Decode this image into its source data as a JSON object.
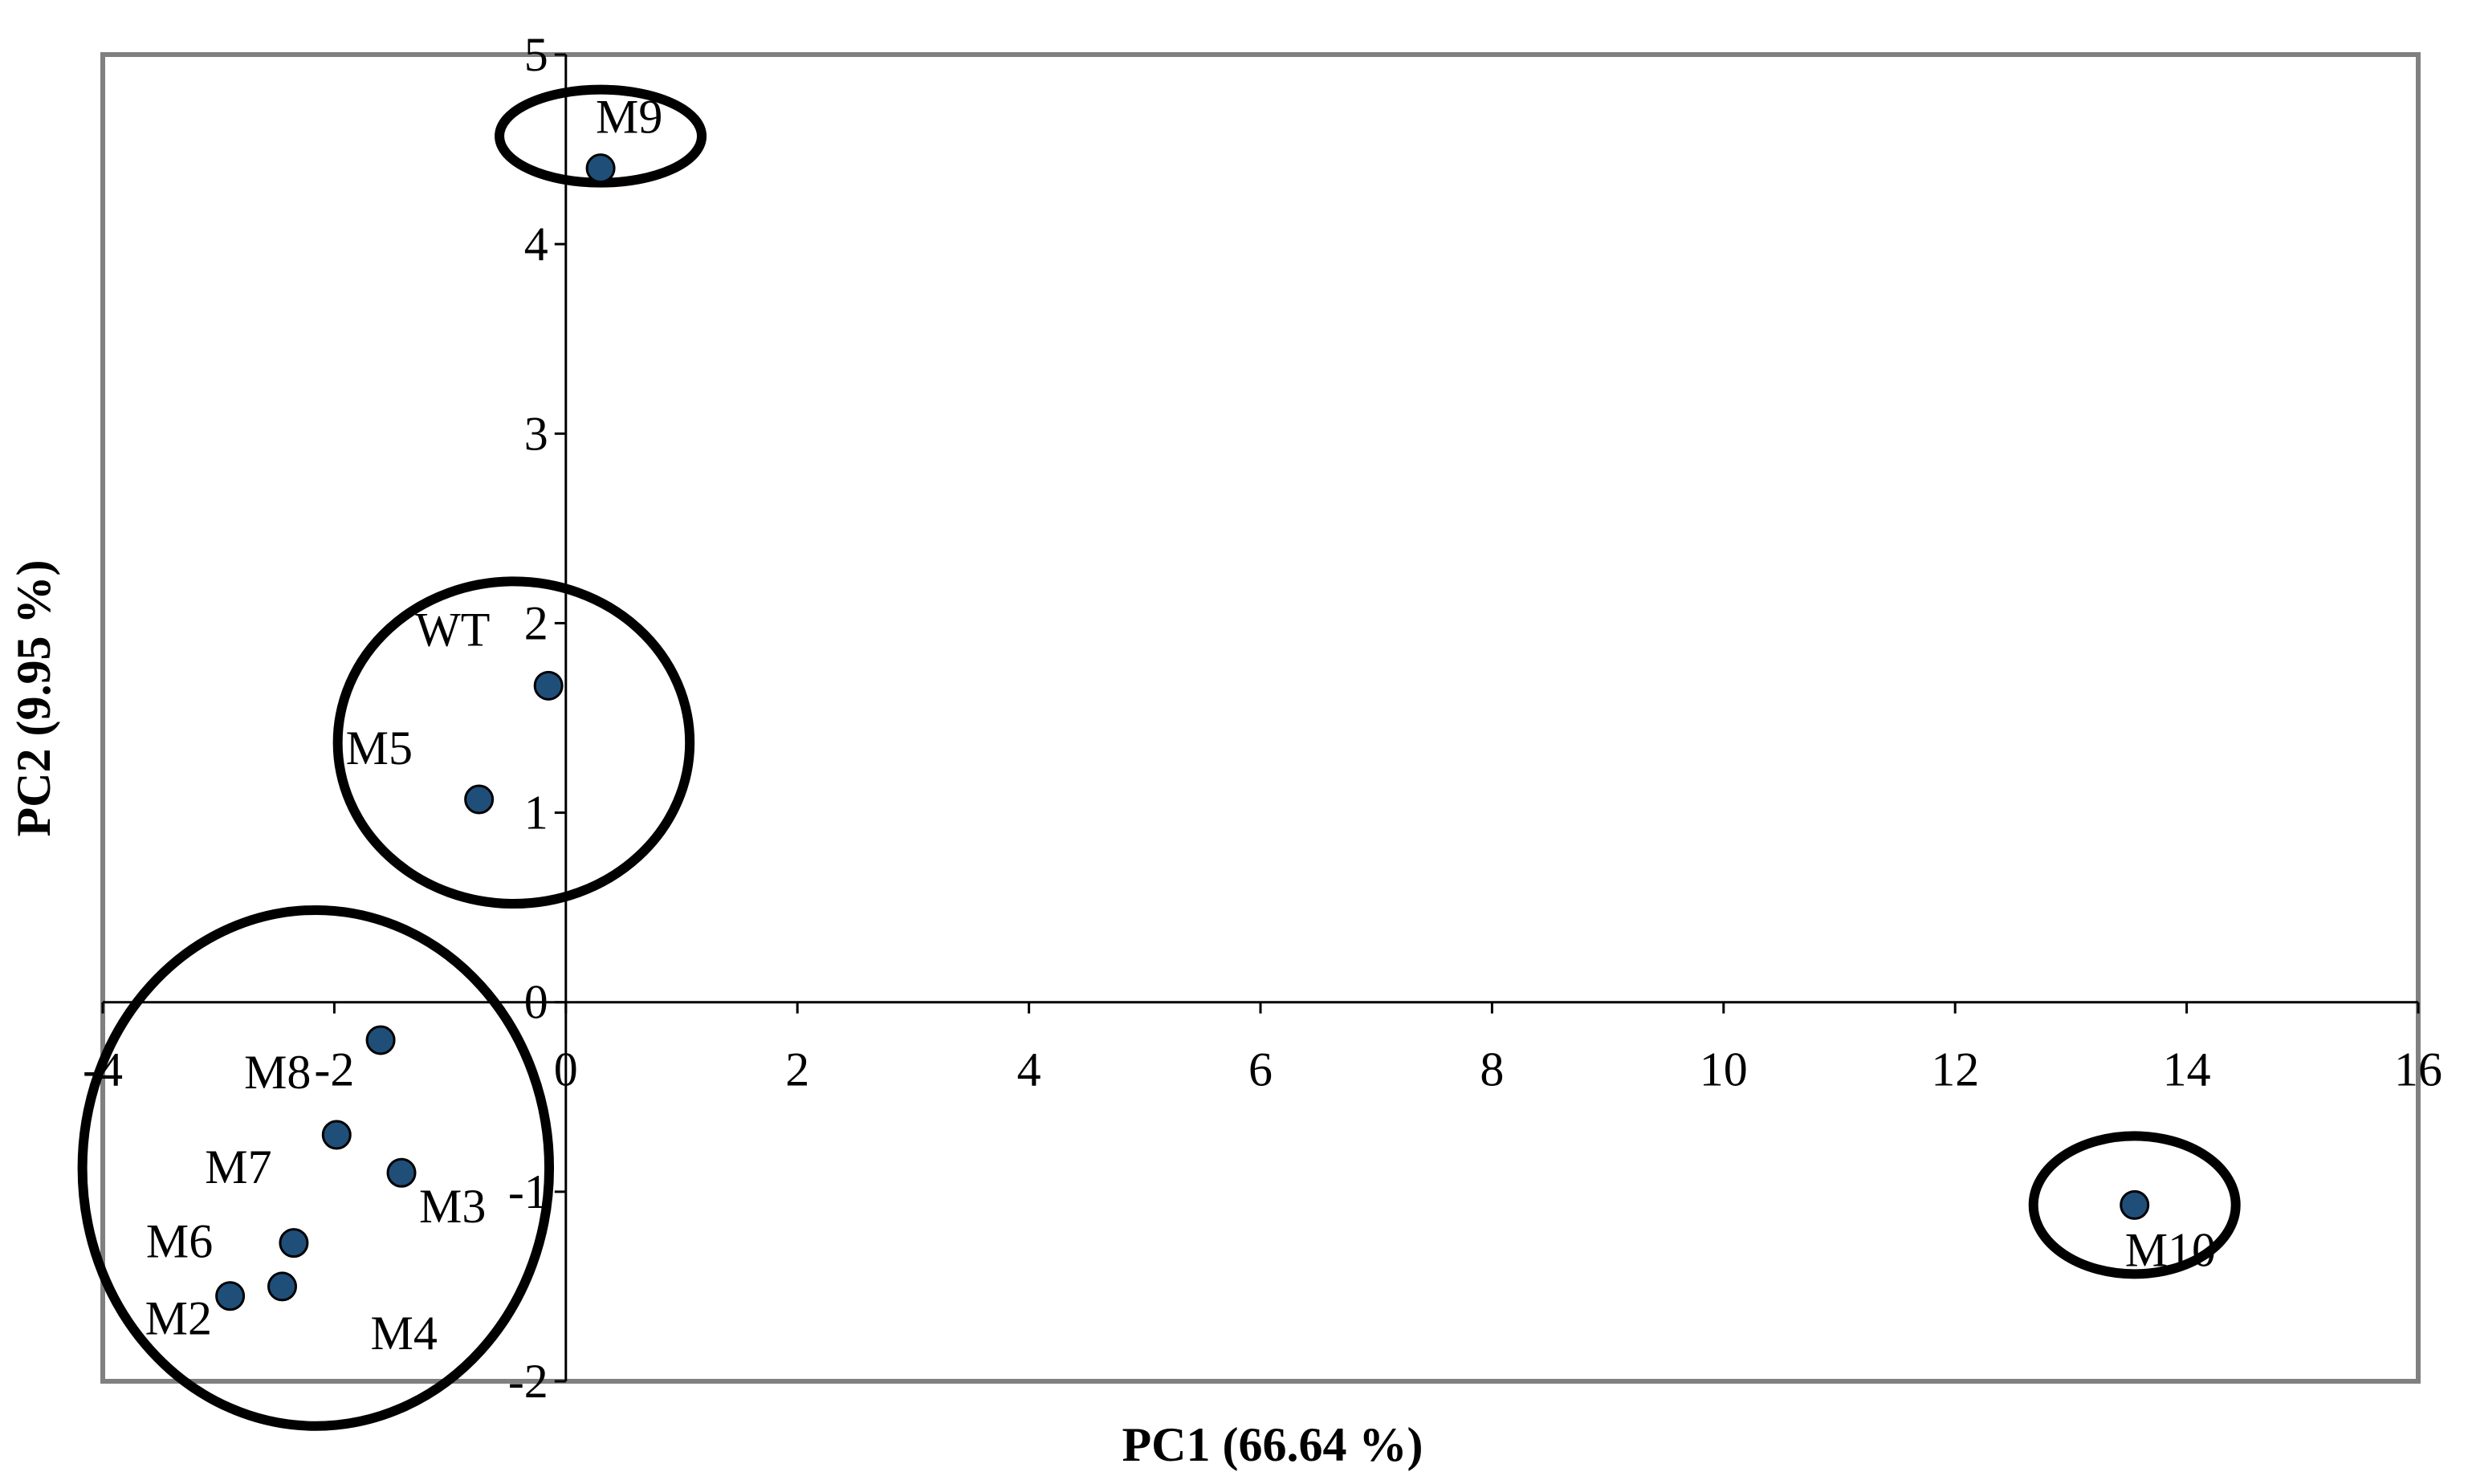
{
  "chart_data": {
    "type": "scatter",
    "title": "",
    "xlabel": "PC1 (66.64 %)",
    "ylabel": "PC2 (9.95 %)",
    "xlim": [
      -4,
      16
    ],
    "ylim": [
      -2,
      5
    ],
    "xticks": [
      -4,
      -2,
      0,
      2,
      4,
      6,
      8,
      10,
      12,
      14,
      16
    ],
    "yticks": [
      -2,
      -1,
      0,
      1,
      2,
      3,
      4,
      5
    ],
    "grid": false,
    "legend": "none",
    "marker_color": "#1f4e79",
    "points": [
      {
        "label": "M9",
        "x": 0.3,
        "y": 4.4
      },
      {
        "label": "WT",
        "x": -0.15,
        "y": 1.67
      },
      {
        "label": "M5",
        "x": -0.75,
        "y": 1.07
      },
      {
        "label": "M8",
        "x": -1.6,
        "y": -0.2
      },
      {
        "label": "M7",
        "x": -1.98,
        "y": -0.7
      },
      {
        "label": "M3",
        "x": -1.42,
        "y": -0.9
      },
      {
        "label": "M6",
        "x": -2.35,
        "y": -1.27
      },
      {
        "label": "M4",
        "x": -2.45,
        "y": -1.5
      },
      {
        "label": "M2",
        "x": -2.9,
        "y": -1.55
      },
      {
        "label": "M10",
        "x": 13.55,
        "y": -1.07
      }
    ],
    "clusters": [
      {
        "members": [
          "M9"
        ]
      },
      {
        "members": [
          "WT",
          "M5"
        ]
      },
      {
        "members": [
          "M8",
          "M7",
          "M3",
          "M6",
          "M4",
          "M2"
        ]
      },
      {
        "members": [
          "M10"
        ]
      }
    ]
  }
}
